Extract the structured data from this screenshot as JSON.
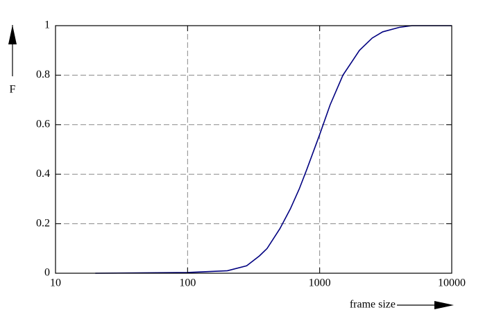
{
  "chart_data": {
    "type": "line",
    "xlabel": "frame size",
    "ylabel": "F",
    "xscale": "log",
    "x": [
      20,
      100,
      200,
      280,
      350,
      400,
      500,
      600,
      700,
      800,
      1000,
      1200,
      1500,
      2000,
      2500,
      3000,
      4000,
      5000,
      10000
    ],
    "series": [
      {
        "color": "#000080",
        "values": [
          0,
          0.003,
          0.01,
          0.03,
          0.07,
          0.1,
          0.18,
          0.26,
          0.34,
          0.42,
          0.56,
          0.68,
          0.8,
          0.9,
          0.95,
          0.975,
          0.993,
          1,
          1
        ]
      }
    ],
    "xlim": [
      10,
      10000
    ],
    "xticks": [
      10,
      100,
      1000,
      10000
    ],
    "ylim": [
      0,
      1
    ],
    "yticks": [
      0,
      0.2,
      0.4,
      0.6,
      0.8,
      1
    ],
    "grid": true
  }
}
